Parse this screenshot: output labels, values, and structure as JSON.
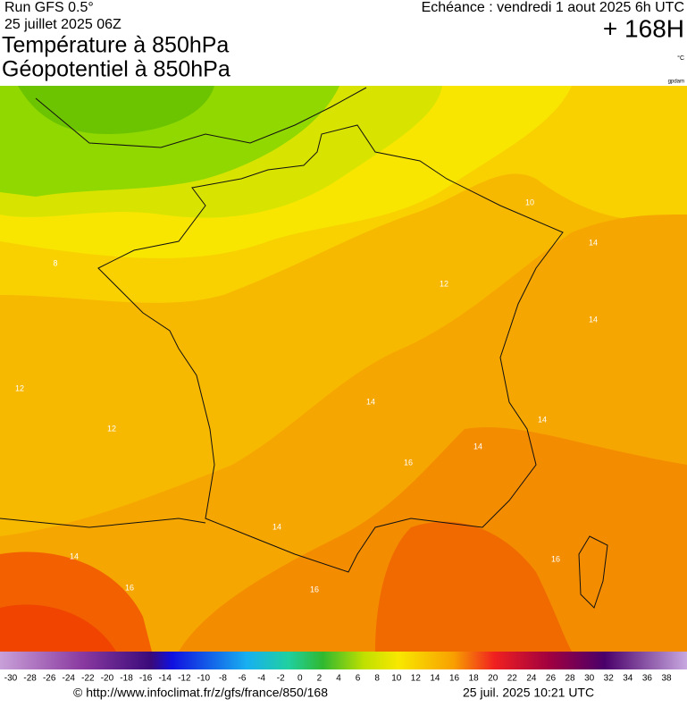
{
  "header": {
    "run": "Run GFS 0.5°",
    "date": "25 juillet 2025 06Z",
    "title_temperature": "Température à 850hPa",
    "title_geopotential": "Géopotentiel à 850hPa",
    "forecast": "Echéance : vendredi 1 aout 2025 6h UTC",
    "lead_time": "+ 168H",
    "unit": "°C",
    "credit": "gpdam"
  },
  "map": {
    "contour_labels": [
      "8",
      "10",
      "12",
      "12",
      "12",
      "14",
      "14",
      "14",
      "14",
      "14",
      "14",
      "14",
      "16",
      "16",
      "16",
      "16"
    ]
  },
  "legend": {
    "labels": [
      "-30",
      "-28",
      "-26",
      "-24",
      "-22",
      "-20",
      "-18",
      "-16",
      "-14",
      "-12",
      "-10",
      "-8",
      "-6",
      "-4",
      "-2",
      "0",
      "2",
      "4",
      "6",
      "8",
      "10",
      "12",
      "14",
      "16",
      "18",
      "20",
      "22",
      "24",
      "26",
      "28",
      "30",
      "32",
      "34",
      "36",
      "38"
    ]
  },
  "footer": {
    "url": "© http://www.infoclimat.fr/z/gfs/france/850/168",
    "timestamp": "25 juil. 2025 10:21 UTC"
  }
}
